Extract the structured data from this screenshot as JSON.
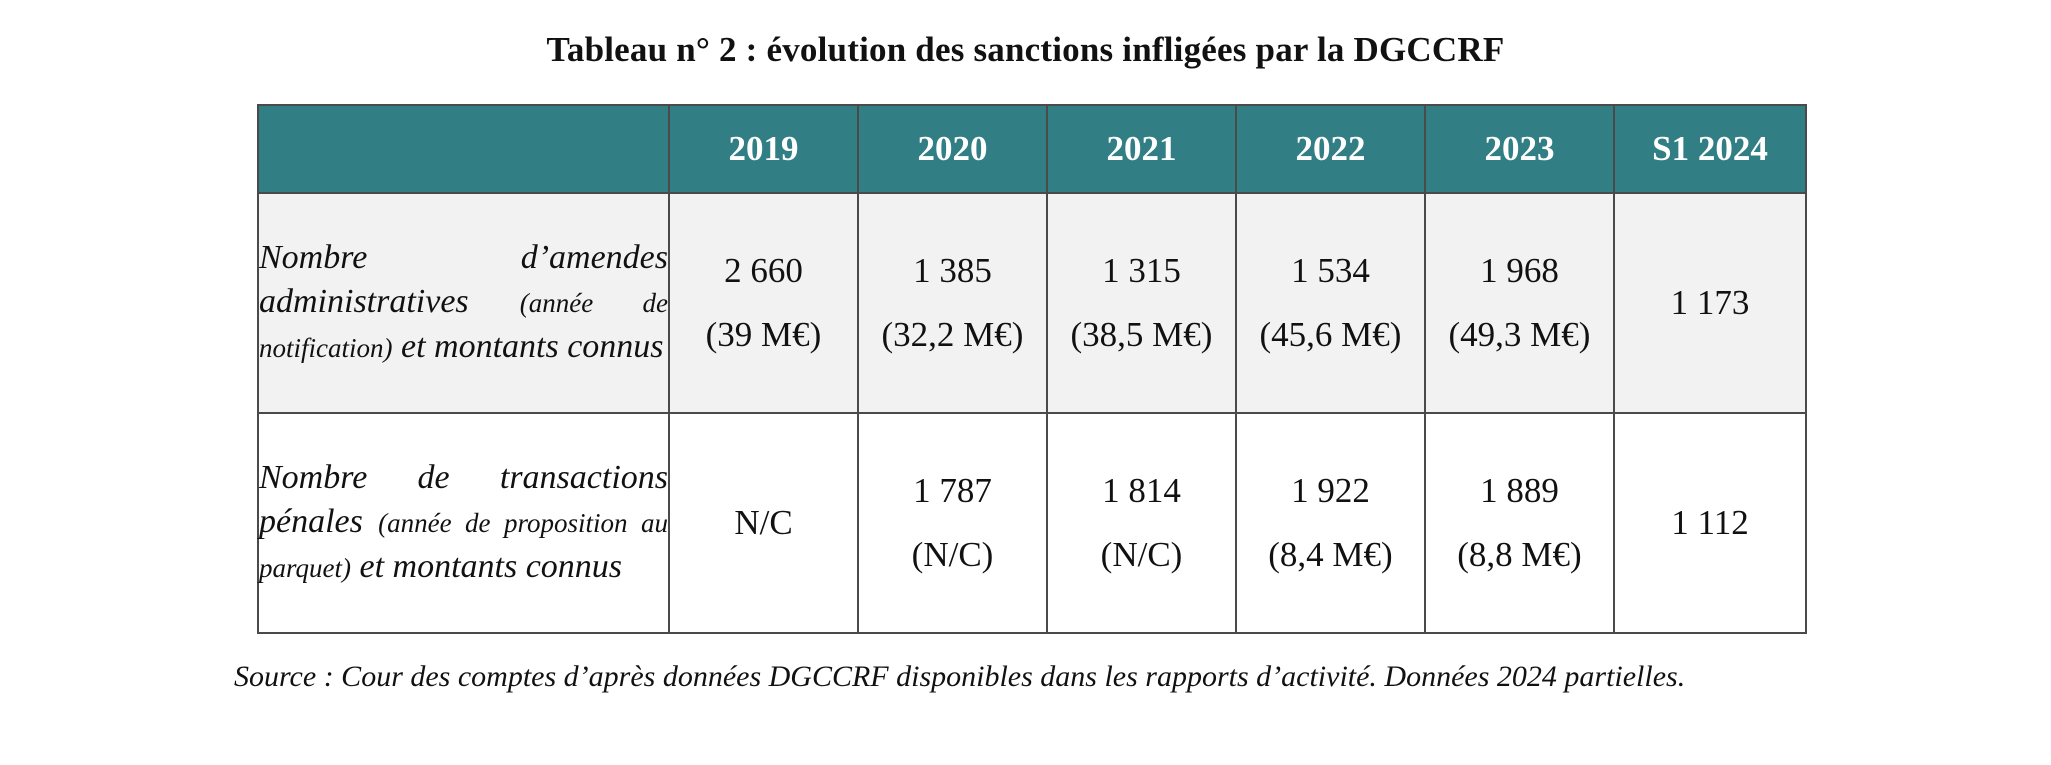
{
  "title": "Tableau n° 2 :  évolution des sanctions infligées par la DGCCRF",
  "table": {
    "headers": [
      "",
      "2019",
      "2020",
      "2021",
      "2022",
      "2023",
      "S1 2024"
    ],
    "rows": [
      {
        "label_main_1": "Nombre d’amendes administratives",
        "label_small": "(année de notification)",
        "label_main_2": "et montants connus",
        "cells": [
          {
            "count": "2 660",
            "amount": "(39 M€)"
          },
          {
            "count": "1 385",
            "amount": "(32,2 M€)"
          },
          {
            "count": "1 315",
            "amount": "(38,5 M€)"
          },
          {
            "count": "1 534",
            "amount": "(45,6 M€)"
          },
          {
            "count": "1 968",
            "amount": "(49,3 M€)"
          },
          {
            "count": "1 173",
            "amount": ""
          }
        ]
      },
      {
        "label_main_1": "Nombre de transactions pénales",
        "label_small": "(année de proposition au parquet)",
        "label_main_2": "et montants connus",
        "cells": [
          {
            "count": "N/C",
            "amount": ""
          },
          {
            "count": "1 787",
            "amount": "(N/C)"
          },
          {
            "count": "1 814",
            "amount": "(N/C)"
          },
          {
            "count": "1 922",
            "amount": "(8,4 M€)"
          },
          {
            "count": "1 889",
            "amount": "(8,8 M€)"
          },
          {
            "count": "1 112",
            "amount": ""
          }
        ]
      }
    ]
  },
  "source": "Source : Cour des comptes d’après données DGCCRF disponibles dans les rapports d’activité. Données 2024 partielles.",
  "colors": {
    "header_bg": "#317f84",
    "header_text": "#ffffff",
    "row1_bg": "#f2f2f2",
    "row2_bg": "#ffffff",
    "border": "#4a4a4a"
  }
}
